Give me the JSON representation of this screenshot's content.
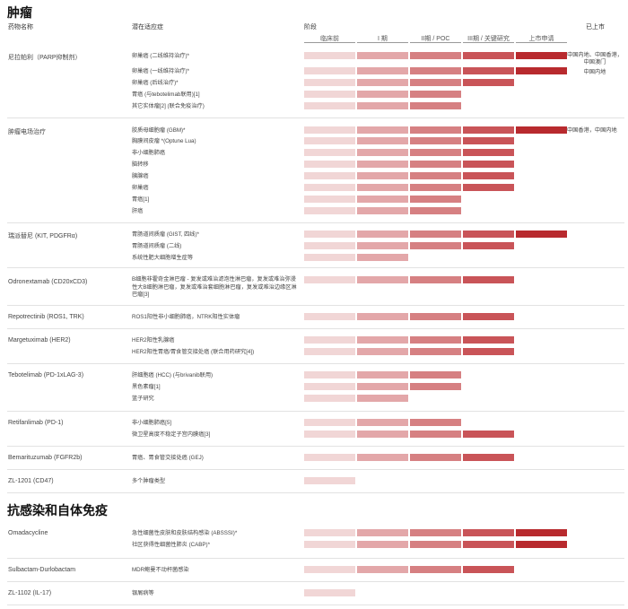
{
  "sections": [
    {
      "title": "肿瘤"
    },
    {
      "title": "抗感染和自体免疫"
    }
  ],
  "headers": {
    "drug": "药物名称",
    "indication": "潜在适应症",
    "phase": "阶段",
    "market": "已上市",
    "phases": [
      "临床前",
      "I 期",
      "II期 / POC",
      "III期 / 关键研究",
      "上市申请"
    ]
  },
  "colors": [
    "#f1d6d6",
    "#e3a7a9",
    "#d68082",
    "#c95458",
    "#b82a2e"
  ],
  "rows": [
    {
      "drug": "尼拉帕利（PARP抑制剂）",
      "indication": "卵巢癌 (二线维持治疗)*",
      "phase": 5,
      "market": "中国内地、中国香港，中国澳门"
    },
    {
      "indication": "卵巢癌 (一线维持治疗)*",
      "phase": 5,
      "market": "中国内地"
    },
    {
      "indication": "卵巢癌 (后线治疗)*",
      "phase": 4
    },
    {
      "indication": "胃癌 (与tebotelimab联用)[1]",
      "phase": 3
    },
    {
      "indication": "其它实体瘤[2] (联合免疫治疗)",
      "phase": 3
    },
    {
      "drug": "肿瘤电场治疗",
      "indication": "胶质母细胞瘤 (GBM)*",
      "phase": 5,
      "market": "中国香港，中国内地"
    },
    {
      "indication": "胸膜间皮瘤 *(Optune Lua)",
      "phase": 4
    },
    {
      "indication": "非小细胞肺癌",
      "phase": 4
    },
    {
      "indication": "脑转移",
      "phase": 4
    },
    {
      "indication": "胰腺癌",
      "phase": 4
    },
    {
      "indication": "卵巢癌",
      "phase": 4
    },
    {
      "indication": "胃癌[1]",
      "phase": 3
    },
    {
      "indication": "肝癌",
      "phase": 3
    },
    {
      "drug": "瑞派替尼 (KIT, PDGFRα)",
      "indication": "胃肠道间质瘤 (GIST, 四线)*",
      "phase": 5
    },
    {
      "indication": "胃肠道间质瘤 (二线)",
      "phase": 4
    },
    {
      "indication": "系统性肥大细胞增生症等",
      "phase": 2
    },
    {
      "drug": "Odronextamab (CD20xCD3)",
      "indication": "B细胞非霍奇金淋巴瘤 - 复发或难治滤泡性淋巴瘤，复发或难治弥漫性大B细胞淋巴瘤，复发或难治套细胞淋巴瘤，复发或难治边缘区淋巴瘤[3]",
      "phase": 4
    },
    {
      "drug": "Repotrectinib (ROS1, TRK)",
      "indication": "ROS1阳性非小细胞肺癌，NTRK阳性实体瘤",
      "phase": 4
    },
    {
      "drug": "Margetuximab (HER2)",
      "indication": "HER2阳性乳腺癌",
      "phase": 4
    },
    {
      "indication": "HER2阳性胃癌/胃食管交接处癌 (联合用药研究[4])",
      "phase": 4
    },
    {
      "drug": "Tebotelimab (PD-1xLAG-3)",
      "indication": "肝细胞癌 (HCC) (与brivanib联用)",
      "phase": 3
    },
    {
      "indication": "黑色素瘤[1]",
      "phase": 3
    },
    {
      "indication": "篮子研究",
      "phase": 2
    },
    {
      "drug": "Retifanlimab (PD-1)",
      "indication": "非小细胞肺癌[5]",
      "phase": 3
    },
    {
      "indication": "微卫星高度不稳定子宫内膜癌[3]",
      "phase": 4
    },
    {
      "drug": "Bemarituzumab (FGFR2b)",
      "indication": "胃癌、胃食管交接处癌 (GEJ)",
      "phase": 4
    },
    {
      "drug": "ZL-1201 (CD47)",
      "indication": "多个肿瘤类型",
      "phase": 1
    },
    {
      "drug": "Omadacycline",
      "indication": "急性细菌性皮肤和皮肤结构感染 (ABSSSI)*",
      "phase": 5
    },
    {
      "indication": "社区获得性细菌性肺炎 (CABP)*",
      "phase": 5
    },
    {
      "drug": "Sulbactam-Durlobactam",
      "indication": "MDR鲍曼不动杆菌感染",
      "phase": 4
    },
    {
      "drug": "ZL-1102 (IL-17)",
      "indication": "银屑病等",
      "phase": 1
    }
  ]
}
